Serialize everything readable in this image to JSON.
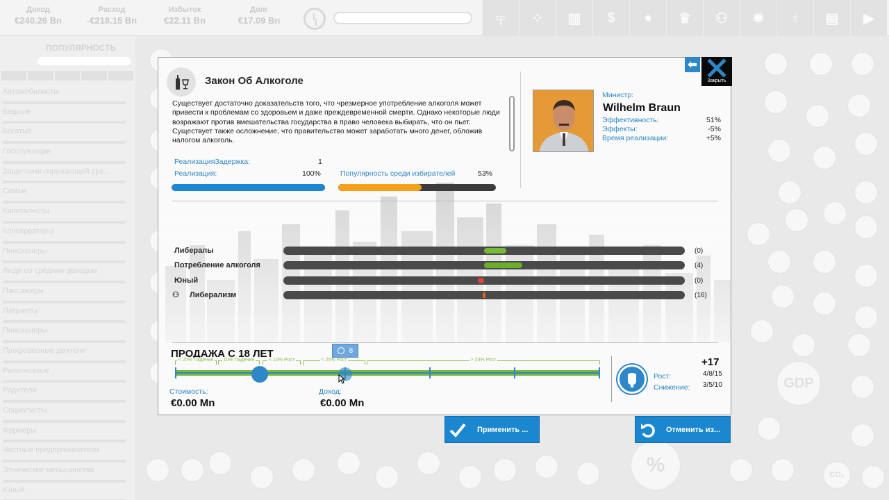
{
  "topbar": {
    "stats": [
      {
        "label": "Доход",
        "value": "€240.26 Bn"
      },
      {
        "label": "Расход",
        "value": "-€218.15 Bn"
      },
      {
        "label": "Избыток",
        "value": "€22.11 Bn"
      },
      {
        "label": "Долг",
        "value": "€17.09 Bn"
      }
    ],
    "toolbar_icons": [
      "gun-icon",
      "people-icon",
      "chart-icon",
      "dollar-icon",
      "bulb-icon",
      "trophy-icon",
      "group-icon",
      "gear-icon",
      "award-icon",
      "document-icon",
      "play-icon"
    ],
    "toolbar_glyphs": [
      "╤",
      "⁘",
      "▥",
      "$",
      "●",
      "♛",
      "⚇",
      "✹",
      "♁",
      "▤",
      "▶"
    ]
  },
  "sidebar": {
    "title": "ПОПУЛЯРНОСТЬ",
    "items": [
      {
        "label": "Автомобилисты"
      },
      {
        "label": "Бедные"
      },
      {
        "label": "Богатые"
      },
      {
        "label": "Госслужащие"
      },
      {
        "label": "Защитники окружающей сре..."
      },
      {
        "label": "Семьи"
      },
      {
        "label": "Капиталисты"
      },
      {
        "label": "Консерваторы"
      },
      {
        "label": "Пенсионеры"
      },
      {
        "label": "Люди со средним доходом"
      },
      {
        "label": "Пассажиры"
      },
      {
        "label": "Патриоты"
      },
      {
        "label": "Пенсионеры"
      },
      {
        "label": "Профсоюзные деятели"
      },
      {
        "label": "Религиозные"
      },
      {
        "label": "Родители"
      },
      {
        "label": "Социалисты"
      },
      {
        "label": "Фермеры"
      },
      {
        "label": "Честные предприниматели"
      },
      {
        "label": "Этнические меньшинства"
      },
      {
        "label": "Юный"
      }
    ]
  },
  "policy": {
    "title": "Закон Об Алкоголе",
    "description": "Существует достаточно доказательств того, что чрезмерное употребление алкоголя может привести к проблемам со здоровьем и даже преждевременной смерти. Однако некоторые люди возражают против вмешательства государства в право человека выбирать, что он пьет. Существует также осложнение, что правительство может заработать много денег, обложив налогом алкоголь.",
    "delay_label": "РеализацияЗадержка:",
    "delay_value": "1",
    "implementation_label": "Реализация:",
    "implementation_value": "100%",
    "implementation_fraction": 1.0,
    "popularity_label": "Популярность среди избирателей",
    "popularity_value": "53%",
    "popularity_fraction": 0.53
  },
  "minister": {
    "label": "Министр:",
    "name": "Wilhelm Braun",
    "stats": [
      {
        "label": "Эффективность:",
        "value": "51%"
      },
      {
        "label": "Эффекты:",
        "value": "-5%"
      },
      {
        "label": "Время реализации:",
        "value": "+5%"
      }
    ]
  },
  "effects": [
    {
      "label": "Либералы",
      "value": "(0)",
      "segments": [
        {
          "from": 0.5,
          "to": 0.555,
          "color": "#7ab83a"
        }
      ],
      "indent": false
    },
    {
      "label": "Потребление алкоголя",
      "value": "(4)",
      "segments": [
        {
          "from": 0.5,
          "to": 0.595,
          "color": "#6aae2c"
        }
      ],
      "indent": false
    },
    {
      "label": "Юный",
      "value": "(0)",
      "segments": [
        {
          "from": 0.485,
          "to": 0.5,
          "color": "#e0443a"
        }
      ],
      "indent": false
    },
    {
      "label": "Либерализм",
      "value": "(16)",
      "segments": [
        {
          "from": 0.497,
          "to": 0.503,
          "color": "#d96a20"
        }
      ],
      "indent": true
    }
  ],
  "slider": {
    "title": "ПРОДАЖА С 18 ЛЕТ",
    "badge_value": "8",
    "zones": [
      "< 25% Падение",
      "10% Падение",
      "< 10% Рост",
      "< 25% Рост",
      "> 25% Рост"
    ],
    "current_fraction": 0.2,
    "preview_fraction": 0.4,
    "cost_label": "Стоимость:",
    "cost_value": "€0.00 Mn",
    "income_label": "Доход:",
    "income_value": "€0.00 Mn"
  },
  "effect_summary": {
    "total": "+17",
    "growth_label": "Рост:",
    "growth_value": "4/8/15",
    "decline_label": "Снижение:",
    "decline_value": "3/5/10"
  },
  "close_label": "Закрыть",
  "apply_label": "Применить ...",
  "cancel_label": "Отменить из...",
  "bg_gdp_label": "GDP",
  "bg_co2_label": "CO₂",
  "bg_percent_label": "%"
}
